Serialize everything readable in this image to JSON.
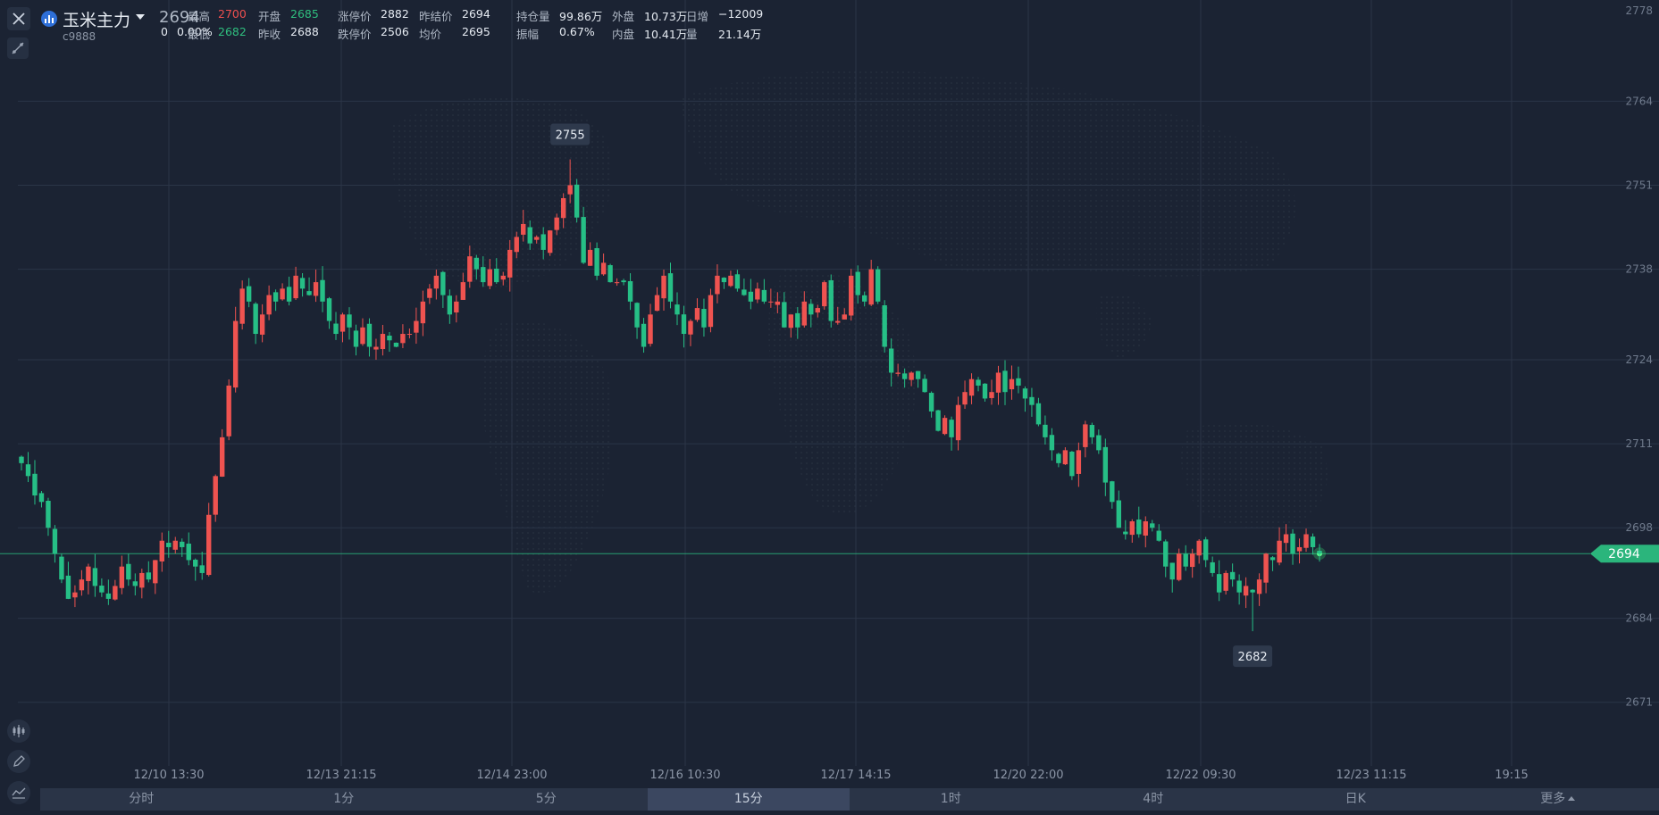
{
  "instrument": {
    "name": "玉米主力",
    "code": "c9888",
    "last_price": "2694",
    "change": "0",
    "change_pct": "0.00%"
  },
  "quotes_row1": [
    {
      "label": "最高",
      "value": "2700",
      "color": "red"
    },
    {
      "label": "开盘",
      "value": "2685",
      "color": "grn"
    },
    {
      "label": "涨停价",
      "value": "2882",
      "color": "wht"
    },
    {
      "label": "昨结价",
      "value": "2694",
      "color": "wht"
    },
    {
      "label": "持仓量",
      "value": "99.86万",
      "color": "wht"
    },
    {
      "label": "外盘",
      "value": "10.73万",
      "color": "wht"
    },
    {
      "label": "日增",
      "value": "−12009",
      "color": "wht"
    }
  ],
  "quotes_row2": [
    {
      "label": "最低",
      "value": "2682",
      "color": "grn"
    },
    {
      "label": "昨收",
      "value": "2688",
      "color": "wht"
    },
    {
      "label": "跌停价",
      "value": "2506",
      "color": "wht"
    },
    {
      "label": "均价",
      "value": "2695",
      "color": "wht"
    },
    {
      "label": "振幅",
      "value": "0.67%",
      "color": "wht"
    },
    {
      "label": "内盘",
      "value": "10.41万",
      "color": "wht"
    },
    {
      "label": "量",
      "value": "21.14万",
      "color": "wht"
    }
  ],
  "timeframe_tabs": [
    "分时",
    "1分",
    "5分",
    "15分",
    "1时",
    "4时",
    "日K",
    "更多"
  ],
  "active_tab": "15分",
  "colors": {
    "background": "#1b2333",
    "up": "#ef5350",
    "down": "#26bf86",
    "last_price_line": "#2bb57c",
    "grid": "#2b3547"
  },
  "icons": [
    "close-icon",
    "bar-chart-icon",
    "draw-line-icon",
    "candles-icon",
    "pencil-icon",
    "indicator-icon"
  ],
  "chart_data": {
    "type": "candlestick",
    "x_tick_labels": [
      "12/10 13:30",
      "12/13 21:15",
      "12/14 23:00",
      "12/16 10:30",
      "12/17 14:15",
      "12/20 22:00",
      "12/22 09:30",
      "12/23 11:15",
      "19:15"
    ],
    "y_tick_labels": [
      2778,
      2764,
      2751,
      2738,
      2724,
      2711,
      2698,
      2684,
      2671
    ],
    "ylim": [
      2664,
      2780
    ],
    "last_price": 2694,
    "high_marker": 2755,
    "low_marker": 2682,
    "grid": true,
    "series_close": [
      2708,
      2706,
      2703,
      2702,
      2698,
      2694,
      2690,
      2687,
      2688,
      2690,
      2692,
      2689,
      2688,
      2687,
      2689,
      2692,
      2690,
      2689,
      2691,
      2690,
      2693,
      2696,
      2695,
      2696,
      2695,
      2693,
      2692,
      2691,
      2700,
      2706,
      2712,
      2720,
      2730,
      2735,
      2733,
      2728,
      2731,
      2734,
      2733,
      2735,
      2733,
      2737,
      2735,
      2734,
      2736,
      2733,
      2730,
      2728,
      2731,
      2729,
      2726,
      2729,
      2726,
      2726,
      2728,
      2727,
      2726,
      2728,
      2728,
      2730,
      2733,
      2735,
      2737,
      2734,
      2731,
      2733,
      2736,
      2740,
      2738,
      2736,
      2738,
      2736,
      2737,
      2741,
      2743,
      2745,
      2742,
      2743,
      2741,
      2744,
      2746,
      2749,
      2751,
      2746,
      2739,
      2741,
      2737,
      2739,
      2736,
      2736,
      2736,
      2733,
      2729,
      2726,
      2731,
      2734,
      2737,
      2733,
      2731,
      2728,
      2730,
      2732,
      2729,
      2734,
      2737,
      2736,
      2737,
      2735,
      2734,
      2733,
      2735,
      2733,
      2733,
      2733,
      2729,
      2731,
      2729,
      2733,
      2731,
      2732,
      2736,
      2730,
      2730,
      2731,
      2737,
      2734,
      2733,
      2738,
      2733,
      2726,
      2722,
      2722,
      2721,
      2722,
      2721,
      2719,
      2716,
      2713,
      2715,
      2712,
      2717,
      2719,
      2721,
      2720,
      2718,
      2719,
      2722,
      2719,
      2721,
      2720,
      2718,
      2717,
      2714,
      2712,
      2710,
      2708,
      2710,
      2706,
      2710,
      2714,
      2712,
      2710,
      2705,
      2702,
      2698,
      2697,
      2699,
      2697,
      2699,
      2698,
      2696,
      2692,
      2690,
      2694,
      2692,
      2694,
      2696,
      2693,
      2691,
      2688,
      2691,
      2690,
      2688,
      2689,
      2688,
      2690,
      2694,
      2693,
      2696,
      2697,
      2694,
      2695,
      2697,
      2695,
      2694
    ]
  }
}
